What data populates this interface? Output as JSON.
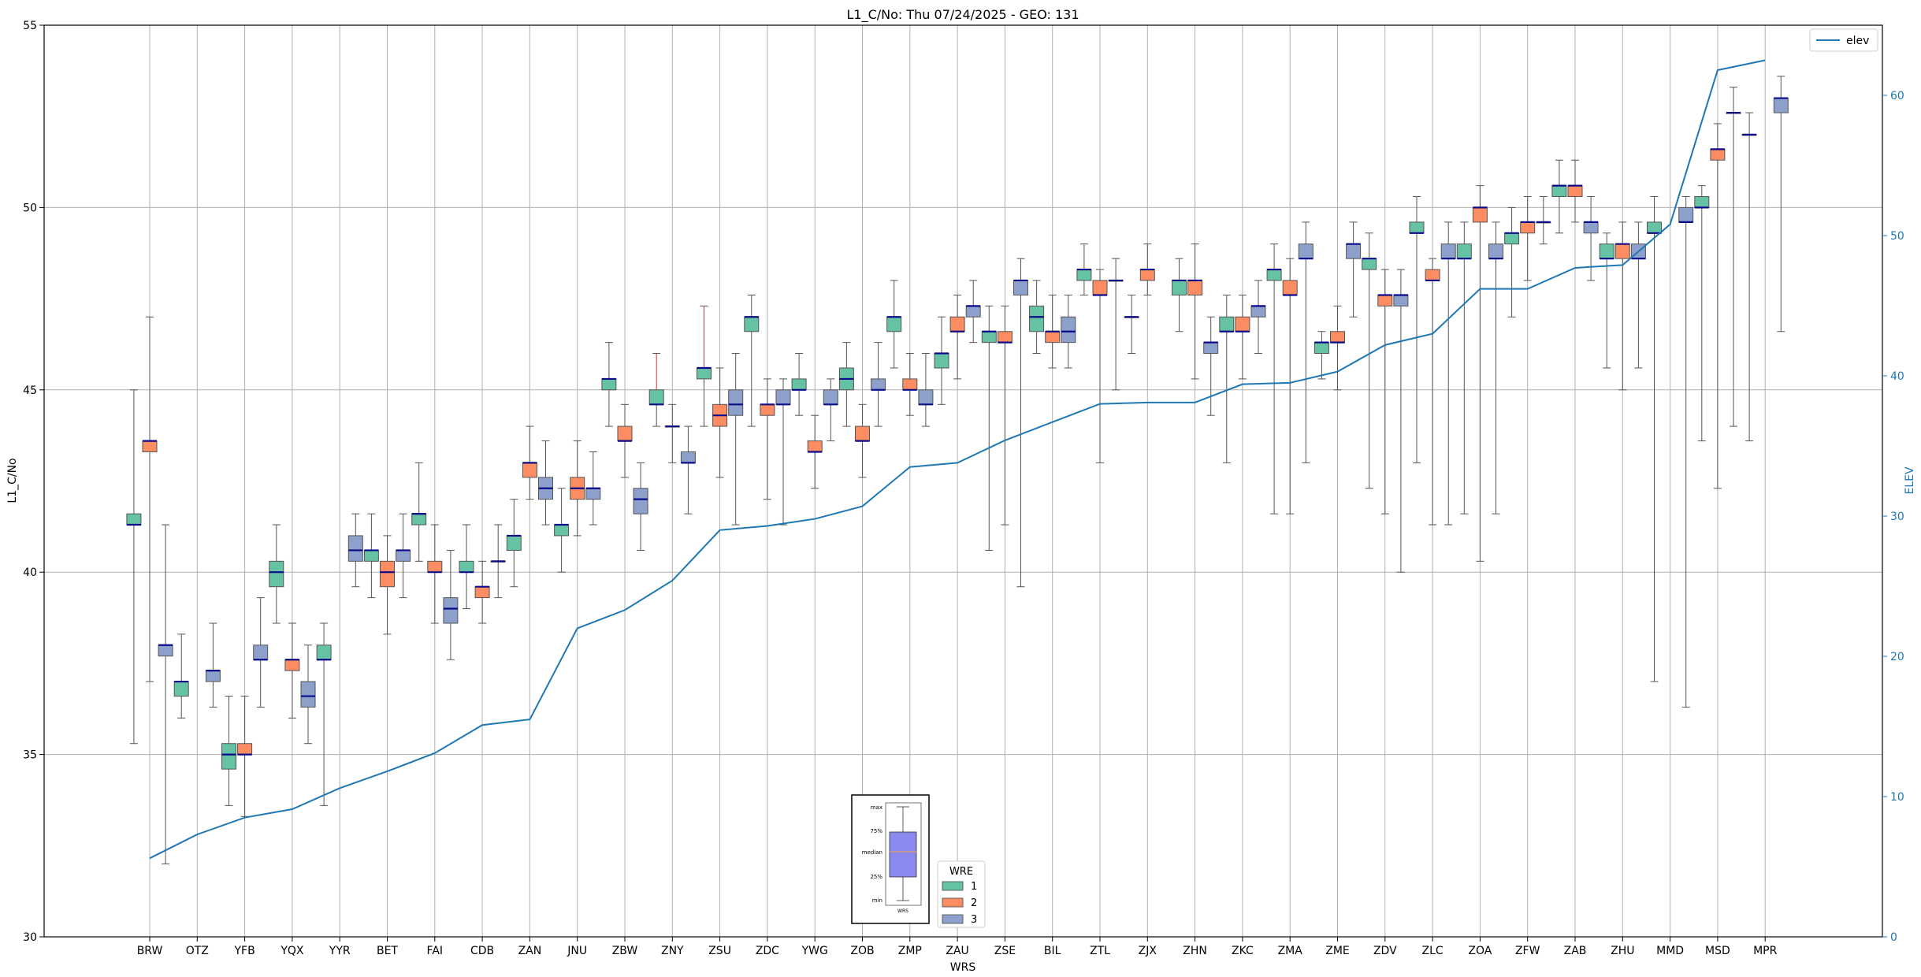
{
  "chart_data": {
    "type": "box",
    "title": "L1_C/No: Thu 07/24/2025 - GEO: 131",
    "xlabel": "WRS",
    "ylabel": "L1_C/No",
    "y2label": "ELEV",
    "ylim": [
      30,
      55
    ],
    "y2lim": [
      0,
      65
    ],
    "yticks": [
      "30",
      "35",
      "40",
      "45",
      "50",
      "55"
    ],
    "y2ticks": [
      "0",
      "10",
      "20",
      "30",
      "40",
      "50",
      "60"
    ],
    "grid": true,
    "categories": [
      "BRW",
      "OTZ",
      "YFB",
      "YQX",
      "YYR",
      "BET",
      "FAI",
      "CDB",
      "ZAN",
      "JNU",
      "ZBW",
      "ZNY",
      "ZSU",
      "ZDC",
      "YWG",
      "ZOB",
      "ZMP",
      "ZAU",
      "ZSE",
      "BIL",
      "ZTL",
      "ZJX",
      "ZHN",
      "ZKC",
      "ZMA",
      "ZME",
      "ZDV",
      "ZLC",
      "ZOA",
      "ZFW",
      "ZAB",
      "ZHU",
      "MMD",
      "MSD",
      "MPR"
    ],
    "wre_colors": {
      "1": "#66c2a5",
      "2": "#fc8d62",
      "3": "#8da0cb"
    },
    "boxes": [
      {
        "station": "BRW",
        "wre": 1,
        "min": 35.3,
        "q1": 41.3,
        "median": 41.3,
        "q3": 41.6,
        "max": 45.0
      },
      {
        "station": "BRW",
        "wre": 2,
        "min": 37.0,
        "q1": 43.3,
        "median": 43.6,
        "q3": 43.6,
        "max": 47.0
      },
      {
        "station": "BRW",
        "wre": 3,
        "min": 32.0,
        "q1": 37.7,
        "median": 38.0,
        "q3": 38.0,
        "max": 41.3
      },
      {
        "station": "OTZ",
        "wre": 1,
        "min": 36.0,
        "q1": 36.6,
        "median": 37.0,
        "q3": 37.0,
        "max": 38.3
      },
      {
        "station": "OTZ",
        "wre": 3,
        "min": 36.3,
        "q1": 37.0,
        "median": 37.3,
        "q3": 37.3,
        "max": 38.6
      },
      {
        "station": "YFB",
        "wre": 1,
        "min": 33.6,
        "q1": 34.6,
        "median": 35.0,
        "q3": 35.3,
        "max": 36.6
      },
      {
        "station": "YFB",
        "wre": 2,
        "min": 33.3,
        "q1": 35.0,
        "median": 35.0,
        "q3": 35.3,
        "max": 36.6
      },
      {
        "station": "YFB",
        "wre": 3,
        "min": 36.3,
        "q1": 37.6,
        "median": 37.6,
        "q3": 38.0,
        "max": 39.3
      },
      {
        "station": "YQX",
        "wre": 1,
        "min": 38.6,
        "q1": 39.6,
        "median": 40.0,
        "q3": 40.3,
        "max": 41.3
      },
      {
        "station": "YQX",
        "wre": 2,
        "min": 36.0,
        "q1": 37.3,
        "median": 37.6,
        "q3": 37.6,
        "max": 38.6
      },
      {
        "station": "YQX",
        "wre": 3,
        "min": 35.3,
        "q1": 36.3,
        "median": 36.6,
        "q3": 37.0,
        "max": 38.0
      },
      {
        "station": "YYR",
        "wre": 1,
        "min": 33.6,
        "q1": 37.6,
        "median": 37.6,
        "q3": 38.0,
        "max": 38.6
      },
      {
        "station": "YYR",
        "wre": 3,
        "min": 39.6,
        "q1": 40.3,
        "median": 40.6,
        "q3": 41.0,
        "max": 41.6
      },
      {
        "station": "BET",
        "wre": 1,
        "min": 39.3,
        "q1": 40.3,
        "median": 40.6,
        "q3": 40.6,
        "max": 41.6
      },
      {
        "station": "BET",
        "wre": 2,
        "min": 38.3,
        "q1": 39.6,
        "median": 40.0,
        "q3": 40.3,
        "max": 41.0
      },
      {
        "station": "BET",
        "wre": 3,
        "min": 39.3,
        "q1": 40.3,
        "median": 40.6,
        "q3": 40.6,
        "max": 41.6
      },
      {
        "station": "FAI",
        "wre": 1,
        "min": 40.3,
        "q1": 41.3,
        "median": 41.6,
        "q3": 41.6,
        "max": 43.0
      },
      {
        "station": "FAI",
        "wre": 2,
        "min": 38.6,
        "q1": 40.0,
        "median": 40.0,
        "q3": 40.3,
        "max": 41.3
      },
      {
        "station": "FAI",
        "wre": 3,
        "min": 37.6,
        "q1": 38.6,
        "median": 39.0,
        "q3": 39.3,
        "max": 40.6
      },
      {
        "station": "CDB",
        "wre": 1,
        "min": 39.0,
        "q1": 40.0,
        "median": 40.0,
        "q3": 40.3,
        "max": 41.3
      },
      {
        "station": "CDB",
        "wre": 2,
        "min": 38.6,
        "q1": 39.3,
        "median": 39.6,
        "q3": 39.6,
        "max": 40.3
      },
      {
        "station": "CDB",
        "wre": 3,
        "min": 39.3,
        "q1": 40.3,
        "median": 40.3,
        "q3": 40.3,
        "max": 41.3
      },
      {
        "station": "ZAN",
        "wre": 1,
        "min": 39.6,
        "q1": 40.6,
        "median": 41.0,
        "q3": 41.0,
        "max": 42.0
      },
      {
        "station": "ZAN",
        "wre": 2,
        "min": 42.0,
        "q1": 42.6,
        "median": 43.0,
        "q3": 43.0,
        "max": 44.0
      },
      {
        "station": "ZAN",
        "wre": 3,
        "min": 41.3,
        "q1": 42.0,
        "median": 42.3,
        "q3": 42.6,
        "max": 43.6
      },
      {
        "station": "JNU",
        "wre": 1,
        "min": 40.0,
        "q1": 41.0,
        "median": 41.3,
        "q3": 41.3,
        "max": 42.3
      },
      {
        "station": "JNU",
        "wre": 2,
        "min": 41.0,
        "q1": 42.0,
        "median": 42.3,
        "q3": 42.6,
        "max": 43.6
      },
      {
        "station": "JNU",
        "wre": 3,
        "min": 41.3,
        "q1": 42.0,
        "median": 42.3,
        "q3": 42.3,
        "max": 43.3
      },
      {
        "station": "ZBW",
        "wre": 1,
        "min": 44.0,
        "q1": 45.0,
        "median": 45.3,
        "q3": 45.3,
        "max": 46.3
      },
      {
        "station": "ZBW",
        "wre": 2,
        "min": 42.6,
        "q1": 43.6,
        "median": 43.6,
        "q3": 44.0,
        "max": 44.6
      },
      {
        "station": "ZBW",
        "wre": 3,
        "min": 40.6,
        "q1": 41.6,
        "median": 42.0,
        "q3": 42.3,
        "max": 43.0
      },
      {
        "station": "ZNY",
        "wre": 1,
        "min": 44.0,
        "q1": 44.6,
        "median": 44.6,
        "q3": 45.0,
        "max": 46.0,
        "red": true
      },
      {
        "station": "ZNY",
        "wre": 2,
        "min": 43.0,
        "q1": 44.0,
        "median": 44.0,
        "q3": 44.0,
        "max": 44.6
      },
      {
        "station": "ZNY",
        "wre": 3,
        "min": 41.6,
        "q1": 43.0,
        "median": 43.0,
        "q3": 43.3,
        "max": 44.0
      },
      {
        "station": "ZSU",
        "wre": 1,
        "min": 44.0,
        "q1": 45.3,
        "median": 45.6,
        "q3": 45.6,
        "max": 47.3,
        "red": true
      },
      {
        "station": "ZSU",
        "wre": 2,
        "min": 42.6,
        "q1": 44.0,
        "median": 44.3,
        "q3": 44.6,
        "max": 45.6
      },
      {
        "station": "ZSU",
        "wre": 3,
        "min": 41.3,
        "q1": 44.3,
        "median": 44.6,
        "q3": 45.0,
        "max": 46.0
      },
      {
        "station": "ZDC",
        "wre": 1,
        "min": 44.0,
        "q1": 46.6,
        "median": 47.0,
        "q3": 47.0,
        "max": 47.6
      },
      {
        "station": "ZDC",
        "wre": 2,
        "min": 42.0,
        "q1": 44.3,
        "median": 44.6,
        "q3": 44.6,
        "max": 45.3
      },
      {
        "station": "ZDC",
        "wre": 3,
        "min": 41.3,
        "q1": 44.6,
        "median": 44.6,
        "q3": 45.0,
        "max": 45.3
      },
      {
        "station": "YWG",
        "wre": 1,
        "min": 44.3,
        "q1": 45.0,
        "median": 45.0,
        "q3": 45.3,
        "max": 46.0
      },
      {
        "station": "YWG",
        "wre": 2,
        "min": 42.3,
        "q1": 43.3,
        "median": 43.3,
        "q3": 43.6,
        "max": 44.3
      },
      {
        "station": "YWG",
        "wre": 3,
        "min": 43.6,
        "q1": 44.6,
        "median": 44.6,
        "q3": 45.0,
        "max": 45.3
      },
      {
        "station": "ZOB",
        "wre": 1,
        "min": 44.0,
        "q1": 45.0,
        "median": 45.3,
        "q3": 45.6,
        "max": 46.3
      },
      {
        "station": "ZOB",
        "wre": 2,
        "min": 42.6,
        "q1": 43.6,
        "median": 43.6,
        "q3": 44.0,
        "max": 44.6
      },
      {
        "station": "ZOB",
        "wre": 3,
        "min": 44.0,
        "q1": 45.0,
        "median": 45.0,
        "q3": 45.3,
        "max": 46.3
      },
      {
        "station": "ZMP",
        "wre": 1,
        "min": 45.6,
        "q1": 46.6,
        "median": 47.0,
        "q3": 47.0,
        "max": 48.0
      },
      {
        "station": "ZMP",
        "wre": 2,
        "min": 44.3,
        "q1": 45.0,
        "median": 45.0,
        "q3": 45.3,
        "max": 46.0
      },
      {
        "station": "ZMP",
        "wre": 3,
        "min": 44.0,
        "q1": 44.6,
        "median": 44.6,
        "q3": 45.0,
        "max": 46.0
      },
      {
        "station": "ZAU",
        "wre": 1,
        "min": 44.6,
        "q1": 45.6,
        "median": 46.0,
        "q3": 46.0,
        "max": 47.0
      },
      {
        "station": "ZAU",
        "wre": 2,
        "min": 45.3,
        "q1": 46.6,
        "median": 46.6,
        "q3": 47.0,
        "max": 47.6
      },
      {
        "station": "ZAU",
        "wre": 3,
        "min": 46.3,
        "q1": 47.0,
        "median": 47.3,
        "q3": 47.3,
        "max": 48.0
      },
      {
        "station": "ZSE",
        "wre": 1,
        "min": 40.6,
        "q1": 46.3,
        "median": 46.6,
        "q3": 46.6,
        "max": 47.3
      },
      {
        "station": "ZSE",
        "wre": 2,
        "min": 41.3,
        "q1": 46.3,
        "median": 46.3,
        "q3": 46.6,
        "max": 47.3
      },
      {
        "station": "ZSE",
        "wre": 3,
        "min": 39.6,
        "q1": 47.6,
        "median": 48.0,
        "q3": 48.0,
        "max": 48.6
      },
      {
        "station": "BIL",
        "wre": 1,
        "min": 46.0,
        "q1": 46.6,
        "median": 47.0,
        "q3": 47.3,
        "max": 48.0
      },
      {
        "station": "BIL",
        "wre": 2,
        "min": 45.6,
        "q1": 46.3,
        "median": 46.6,
        "q3": 46.6,
        "max": 47.6
      },
      {
        "station": "BIL",
        "wre": 3,
        "min": 45.6,
        "q1": 46.3,
        "median": 46.6,
        "q3": 47.0,
        "max": 47.6
      },
      {
        "station": "ZTL",
        "wre": 1,
        "min": 47.6,
        "q1": 48.0,
        "median": 48.3,
        "q3": 48.3,
        "max": 49.0
      },
      {
        "station": "ZTL",
        "wre": 2,
        "min": 43.0,
        "q1": 47.6,
        "median": 47.6,
        "q3": 48.0,
        "max": 48.3
      },
      {
        "station": "ZTL",
        "wre": 3,
        "min": 45.0,
        "q1": 48.0,
        "median": 48.0,
        "q3": 48.0,
        "max": 48.6
      },
      {
        "station": "ZJX",
        "wre": 1,
        "min": 46.0,
        "q1": 47.0,
        "median": 47.0,
        "q3": 47.0,
        "max": 47.6
      },
      {
        "station": "ZJX",
        "wre": 2,
        "min": 47.6,
        "q1": 48.0,
        "median": 48.3,
        "q3": 48.3,
        "max": 49.0
      },
      {
        "station": "ZHN",
        "wre": 1,
        "min": 46.6,
        "q1": 47.6,
        "median": 48.0,
        "q3": 48.0,
        "max": 48.6
      },
      {
        "station": "ZHN",
        "wre": 2,
        "min": 45.3,
        "q1": 47.6,
        "median": 48.0,
        "q3": 48.0,
        "max": 49.0
      },
      {
        "station": "ZHN",
        "wre": 3,
        "min": 44.3,
        "q1": 46.0,
        "median": 46.3,
        "q3": 46.3,
        "max": 47.0
      },
      {
        "station": "ZKC",
        "wre": 1,
        "min": 43.0,
        "q1": 46.6,
        "median": 46.6,
        "q3": 47.0,
        "max": 47.6
      },
      {
        "station": "ZKC",
        "wre": 2,
        "min": 45.3,
        "q1": 46.6,
        "median": 46.6,
        "q3": 47.0,
        "max": 47.6
      },
      {
        "station": "ZKC",
        "wre": 3,
        "min": 46.0,
        "q1": 47.0,
        "median": 47.3,
        "q3": 47.3,
        "max": 48.0
      },
      {
        "station": "ZMA",
        "wre": 1,
        "min": 41.6,
        "q1": 48.0,
        "median": 48.3,
        "q3": 48.3,
        "max": 49.0
      },
      {
        "station": "ZMA",
        "wre": 2,
        "min": 41.6,
        "q1": 47.6,
        "median": 47.6,
        "q3": 48.0,
        "max": 48.6
      },
      {
        "station": "ZMA",
        "wre": 3,
        "min": 43.0,
        "q1": 48.6,
        "median": 48.6,
        "q3": 49.0,
        "max": 49.6
      },
      {
        "station": "ZME",
        "wre": 1,
        "min": 45.3,
        "q1": 46.0,
        "median": 46.3,
        "q3": 46.3,
        "max": 46.6
      },
      {
        "station": "ZME",
        "wre": 2,
        "min": 45.0,
        "q1": 46.3,
        "median": 46.3,
        "q3": 46.6,
        "max": 47.3
      },
      {
        "station": "ZME",
        "wre": 3,
        "min": 47.0,
        "q1": 48.6,
        "median": 49.0,
        "q3": 49.0,
        "max": 49.6
      },
      {
        "station": "ZDV",
        "wre": 1,
        "min": 42.3,
        "q1": 48.3,
        "median": 48.6,
        "q3": 48.6,
        "max": 49.3
      },
      {
        "station": "ZDV",
        "wre": 2,
        "min": 41.6,
        "q1": 47.3,
        "median": 47.6,
        "q3": 47.6,
        "max": 48.3
      },
      {
        "station": "ZDV",
        "wre": 3,
        "min": 40.0,
        "q1": 47.3,
        "median": 47.6,
        "q3": 47.6,
        "max": 48.3
      },
      {
        "station": "ZLC",
        "wre": 1,
        "min": 43.0,
        "q1": 49.3,
        "median": 49.3,
        "q3": 49.6,
        "max": 50.3
      },
      {
        "station": "ZLC",
        "wre": 2,
        "min": 41.3,
        "q1": 48.0,
        "median": 48.0,
        "q3": 48.3,
        "max": 48.6
      },
      {
        "station": "ZLC",
        "wre": 3,
        "min": 41.3,
        "q1": 48.6,
        "median": 48.6,
        "q3": 49.0,
        "max": 49.6
      },
      {
        "station": "ZOA",
        "wre": 1,
        "min": 41.6,
        "q1": 48.6,
        "median": 48.6,
        "q3": 49.0,
        "max": 49.6
      },
      {
        "station": "ZOA",
        "wre": 2,
        "min": 40.3,
        "q1": 49.6,
        "median": 50.0,
        "q3": 50.0,
        "max": 50.6
      },
      {
        "station": "ZOA",
        "wre": 3,
        "min": 41.6,
        "q1": 48.6,
        "median": 48.6,
        "q3": 49.0,
        "max": 49.6
      },
      {
        "station": "ZFW",
        "wre": 1,
        "min": 47.0,
        "q1": 49.0,
        "median": 49.3,
        "q3": 49.3,
        "max": 50.0
      },
      {
        "station": "ZFW",
        "wre": 2,
        "min": 48.0,
        "q1": 49.3,
        "median": 49.6,
        "q3": 49.6,
        "max": 50.3
      },
      {
        "station": "ZFW",
        "wre": 3,
        "min": 49.0,
        "q1": 49.6,
        "median": 49.6,
        "q3": 49.6,
        "max": 50.3
      },
      {
        "station": "ZAB",
        "wre": 1,
        "min": 49.3,
        "q1": 50.3,
        "median": 50.6,
        "q3": 50.6,
        "max": 51.3
      },
      {
        "station": "ZAB",
        "wre": 2,
        "min": 49.6,
        "q1": 50.3,
        "median": 50.6,
        "q3": 50.6,
        "max": 51.3
      },
      {
        "station": "ZAB",
        "wre": 3,
        "min": 48.0,
        "q1": 49.3,
        "median": 49.6,
        "q3": 49.6,
        "max": 50.3
      },
      {
        "station": "ZHU",
        "wre": 1,
        "min": 45.6,
        "q1": 48.6,
        "median": 48.6,
        "q3": 49.0,
        "max": 49.3
      },
      {
        "station": "ZHU",
        "wre": 2,
        "min": 45.0,
        "q1": 48.6,
        "median": 49.0,
        "q3": 49.0,
        "max": 49.6
      },
      {
        "station": "ZHU",
        "wre": 3,
        "min": 45.6,
        "q1": 48.6,
        "median": 48.6,
        "q3": 49.0,
        "max": 49.6
      },
      {
        "station": "MMD",
        "wre": 1,
        "min": 37.0,
        "q1": 49.3,
        "median": 49.3,
        "q3": 49.6,
        "max": 50.3
      },
      {
        "station": "MMD",
        "wre": 3,
        "min": 36.3,
        "q1": 49.6,
        "median": 49.6,
        "q3": 50.0,
        "max": 50.3
      },
      {
        "station": "MSD",
        "wre": 1,
        "min": 43.6,
        "q1": 50.0,
        "median": 50.0,
        "q3": 50.3,
        "max": 50.6
      },
      {
        "station": "MSD",
        "wre": 2,
        "min": 42.3,
        "q1": 51.3,
        "median": 51.6,
        "q3": 51.6,
        "max": 52.3
      },
      {
        "station": "MSD",
        "wre": 3,
        "min": 44.0,
        "q1": 52.6,
        "median": 52.6,
        "q3": 52.6,
        "max": 53.3
      },
      {
        "station": "MPR",
        "wre": 1,
        "min": 43.6,
        "q1": 52.0,
        "median": 52.0,
        "q3": 52.0,
        "max": 52.6
      },
      {
        "station": "MPR",
        "wre": 3,
        "min": 46.6,
        "q1": 52.6,
        "median": 53.0,
        "q3": 53.0,
        "max": 53.6
      }
    ],
    "elev": {
      "name": "elev",
      "color": "#1f77b4",
      "values": [
        5.6,
        7.3,
        8.5,
        9.1,
        10.6,
        11.8,
        13.1,
        15.1,
        15.5,
        22.0,
        23.3,
        25.4,
        29.0,
        29.3,
        29.8,
        30.7,
        33.5,
        33.8,
        35.4,
        36.7,
        38.0,
        38.1,
        38.1,
        39.4,
        39.5,
        40.3,
        42.2,
        43.0,
        46.2,
        46.2,
        47.7,
        47.9,
        50.8,
        61.8,
        62.5
      ]
    },
    "legend_elev": {
      "label": "elev",
      "placement": "top-right"
    },
    "legend_wre": {
      "title": "WRE",
      "entries": [
        "1",
        "2",
        "3"
      ],
      "placement": "bottom-center"
    },
    "inset_key": {
      "labels": [
        "max",
        "75%",
        "median",
        "25%",
        "min"
      ],
      "xlabel": "WRS"
    }
  }
}
